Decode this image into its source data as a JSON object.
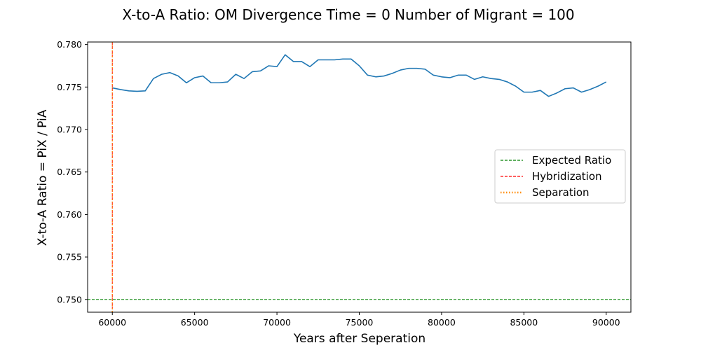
{
  "chart_data": {
    "type": "line",
    "title": "X-to-A Ratio: OM Divergence Time = 0  Number of Migrant = 100",
    "xlabel": "Years after Seperation",
    "ylabel": "X-to-A Ratio = PiX / PiA",
    "xlim": [
      58500,
      91500
    ],
    "ylim": [
      0.7485,
      0.7803
    ],
    "xticks": [
      60000,
      65000,
      70000,
      75000,
      80000,
      85000,
      90000
    ],
    "xtick_labels": [
      "60000",
      "65000",
      "70000",
      "75000",
      "80000",
      "85000",
      "90000"
    ],
    "yticks": [
      0.75,
      0.755,
      0.76,
      0.765,
      0.77,
      0.775,
      0.78
    ],
    "ytick_labels": [
      "0.750",
      "0.755",
      "0.760",
      "0.765",
      "0.770",
      "0.775",
      "0.780"
    ],
    "grid": false,
    "legend_position": "center-right",
    "series": [
      {
        "name": "",
        "color": "#1f77b4",
        "x": [
          60000,
          60500,
          61000,
          61500,
          62000,
          62500,
          63000,
          63500,
          64000,
          64500,
          65000,
          65500,
          66000,
          66500,
          67000,
          67500,
          68000,
          68500,
          69000,
          69500,
          70000,
          70500,
          71000,
          71500,
          72000,
          72500,
          73000,
          73500,
          74000,
          74500,
          75000,
          75500,
          76000,
          76500,
          77000,
          77500,
          78000,
          78500,
          79000,
          79500,
          80000,
          80500,
          81000,
          81500,
          82000,
          82500,
          83000,
          83500,
          84000,
          84500,
          85000,
          85500,
          86000,
          86500,
          87000,
          87500,
          88000,
          88500,
          89000,
          89500,
          90000
        ],
        "y": [
          0.7749,
          0.7747,
          0.77455,
          0.7745,
          0.77455,
          0.776,
          0.7765,
          0.7767,
          0.7763,
          0.7755,
          0.7761,
          0.7763,
          0.7755,
          0.7755,
          0.7756,
          0.7765,
          0.776,
          0.7768,
          0.7769,
          0.7775,
          0.7774,
          0.7788,
          0.778,
          0.778,
          0.7774,
          0.7782,
          0.7782,
          0.7782,
          0.7783,
          0.7783,
          0.7775,
          0.7764,
          0.7762,
          0.7763,
          0.7766,
          0.777,
          0.7772,
          0.7772,
          0.7771,
          0.7764,
          0.7762,
          0.7761,
          0.7764,
          0.7764,
          0.7759,
          0.7762,
          0.776,
          0.7759,
          0.7756,
          0.7751,
          0.7744,
          0.7744,
          0.7746,
          0.7739,
          0.7743,
          0.7748,
          0.7749,
          0.7744,
          0.7747,
          0.7751,
          0.7756
        ]
      }
    ],
    "reference_lines": [
      {
        "name": "Expected Ratio",
        "orientation": "horizontal",
        "value": 0.75,
        "color": "#008000",
        "style": "dashed"
      },
      {
        "name": "Hybridization",
        "orientation": "vertical",
        "value": 60000,
        "color": "#ff0000",
        "style": "dashed"
      },
      {
        "name": "Separation",
        "orientation": "vertical",
        "value": 60000,
        "color": "#ff8c00",
        "style": "dotted"
      }
    ]
  }
}
